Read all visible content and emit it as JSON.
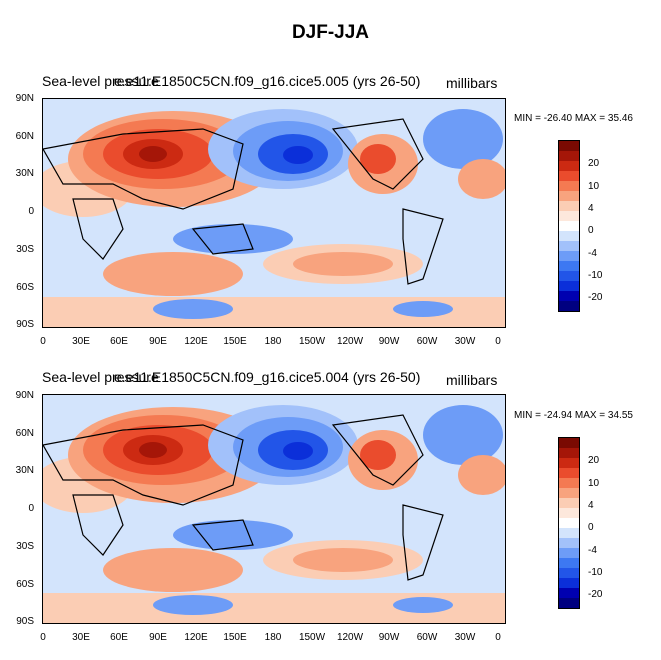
{
  "title": "DJF-JJA",
  "colors": {
    "scale": [
      "#000080",
      "#0000b0",
      "#0b2fd9",
      "#2255e8",
      "#3d78f2",
      "#6d9cf7",
      "#a2c1fa",
      "#d3e4fc",
      "#ffffff",
      "#fde8dc",
      "#fbcdb4",
      "#f8a37e",
      "#f47a52",
      "#ea4c2d",
      "#cc2a12",
      "#a51608",
      "#7a0a02"
    ],
    "land_outline": "#000000"
  },
  "panels": [
    {
      "title_overlap_a": "Sea-level pressure",
      "title_overlap_b": "e.e11.E1850C5CN.f09_g16.cice5.005 (yrs 26-50)",
      "units": "millibars",
      "min_max": "MIN = -26.40 MAX =  35.46"
    },
    {
      "title_overlap_a": "Sea-level pressure",
      "title_overlap_b": "e.e11.E1850C5CN.f09_g16.cice5.004 (yrs 26-50)",
      "units": "millibars",
      "min_max": "MIN = -24.94 MAX =  34.55"
    }
  ],
  "lat_labels": [
    "90N",
    "60N",
    "30N",
    "0",
    "30S",
    "60S",
    "90S"
  ],
  "lon_labels": [
    "0",
    "30E",
    "60E",
    "90E",
    "120E",
    "150E",
    "180",
    "150W",
    "120W",
    "90W",
    "60W",
    "30W",
    "0"
  ],
  "colorbar_labels": [
    "20",
    "10",
    "4",
    "0",
    "-4",
    "-10",
    "-20"
  ]
}
